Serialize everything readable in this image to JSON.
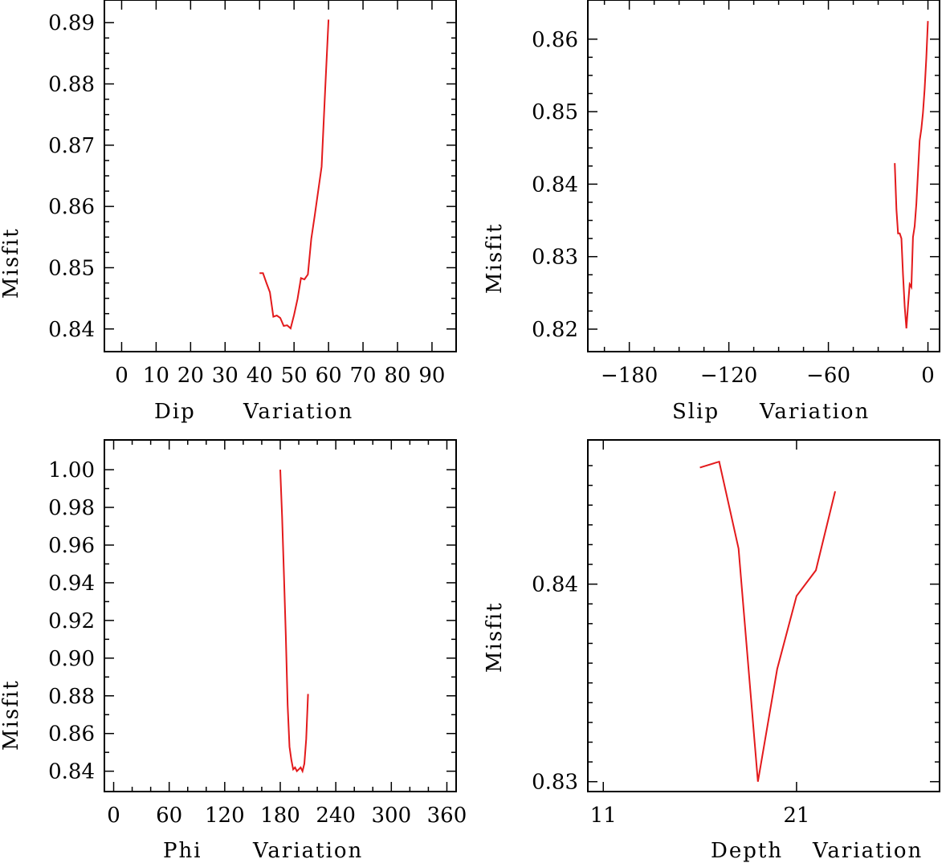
{
  "colors": {
    "series": "#e31a1c",
    "axes": "#000000"
  },
  "chart_data": [
    {
      "id": "dip",
      "type": "line",
      "title": "",
      "xlabel": "Dip",
      "xlabel2": "Variation",
      "ylabel": "Misfit",
      "xlim": [
        -5,
        97
      ],
      "ylim": [
        0.8363,
        0.8937
      ],
      "xticks": [
        0,
        10,
        20,
        30,
        40,
        50,
        60,
        70,
        80,
        90
      ],
      "xtick_labels": [
        "0",
        "10",
        "20",
        "30",
        "40",
        "50",
        "60",
        "70",
        "80",
        "90"
      ],
      "xminor": [],
      "yticks": [
        0.84,
        0.85,
        0.86,
        0.87,
        0.88,
        0.89
      ],
      "ytick_labels": [
        "0.84",
        "0.85",
        "0.86",
        "0.87",
        "0.88",
        "0.89"
      ],
      "yminor": [
        0.8425,
        0.845,
        0.8475,
        0.8525,
        0.855,
        0.8575,
        0.8625,
        0.865,
        0.8675,
        0.8725,
        0.875,
        0.8775,
        0.8825,
        0.885,
        0.8875
      ],
      "series": [
        {
          "name": "misfit",
          "x": [
            40,
            41,
            42,
            43,
            44,
            45,
            46,
            47,
            48,
            49,
            50,
            51,
            52,
            53,
            54,
            55,
            56,
            57,
            58,
            59,
            60
          ],
          "y": [
            0.8491,
            0.8491,
            0.8475,
            0.846,
            0.842,
            0.8422,
            0.8418,
            0.8405,
            0.8406,
            0.8401,
            0.8423,
            0.8449,
            0.8483,
            0.8481,
            0.8489,
            0.8547,
            0.8585,
            0.8625,
            0.8665,
            0.8787,
            0.8905
          ]
        }
      ]
    },
    {
      "id": "slip",
      "type": "line",
      "title": "",
      "xlabel": "Slip",
      "xlabel2": "Variation",
      "ylabel": "Misfit",
      "xlim": [
        -205,
        7
      ],
      "ylim": [
        0.8169,
        0.8654
      ],
      "xticks": [
        -180,
        -120,
        -60,
        0
      ],
      "xtick_labels": [
        "−180",
        "−120",
        "−60",
        "0"
      ],
      "xminor": [
        -195,
        -165,
        -150,
        -135,
        -105,
        -90,
        -75,
        -45,
        -30,
        -15
      ],
      "yticks": [
        0.82,
        0.83,
        0.84,
        0.85,
        0.86
      ],
      "ytick_labels": [
        "0.82",
        "0.83",
        "0.84",
        "0.85",
        "0.86"
      ],
      "yminor": [
        0.8225,
        0.825,
        0.8275,
        0.8325,
        0.835,
        0.8375,
        0.8425,
        0.845,
        0.8475,
        0.8525,
        0.855,
        0.8575
      ],
      "series": [
        {
          "name": "misfit",
          "x": [
            -20,
            -19,
            -18,
            -17,
            -16,
            -15,
            -14,
            -13,
            -12,
            -11,
            -10,
            -9,
            -8,
            -7,
            -6,
            -5,
            -4,
            -3,
            -2,
            -1,
            0
          ],
          "y": [
            0.8429,
            0.8365,
            0.8332,
            0.8332,
            0.8325,
            0.8275,
            0.8231,
            0.8201,
            0.8232,
            0.8262,
            0.8258,
            0.8327,
            0.8342,
            0.8373,
            0.8415,
            0.846,
            0.8476,
            0.8498,
            0.8531,
            0.8574,
            0.8625
          ]
        }
      ]
    },
    {
      "id": "phi",
      "type": "line",
      "title": "",
      "xlabel": "Phi",
      "xlabel2": "Variation",
      "ylabel": "Misfit",
      "xlim": [
        -10,
        370
      ],
      "ylim": [
        0.8292,
        1.0158
      ],
      "xticks": [
        0,
        60,
        120,
        180,
        240,
        300,
        360
      ],
      "xtick_labels": [
        "0",
        "60",
        "120",
        "180",
        "240",
        "300",
        "360"
      ],
      "xminor": [
        20,
        40,
        80,
        100,
        140,
        160,
        200,
        220,
        260,
        280,
        320,
        340
      ],
      "yticks": [
        0.84,
        0.86,
        0.88,
        0.9,
        0.92,
        0.94,
        0.96,
        0.98,
        1.0
      ],
      "ytick_labels": [
        "0.84",
        "0.86",
        "0.88",
        "0.90",
        "0.92",
        "0.94",
        "0.96",
        "0.98",
        "1.00"
      ],
      "yminor": [
        0.85,
        0.87,
        0.89,
        0.91,
        0.93,
        0.95,
        0.97,
        0.99
      ],
      "series": [
        {
          "name": "misfit",
          "x": [
            180,
            182,
            184,
            186,
            188,
            190,
            192,
            194,
            196,
            198,
            200,
            202,
            204,
            206,
            208,
            210
          ],
          "y": [
            1.0,
            0.975,
            0.944,
            0.912,
            0.875,
            0.853,
            0.846,
            0.841,
            0.842,
            0.84,
            0.841,
            0.842,
            0.84,
            0.844,
            0.857,
            0.881
          ]
        }
      ]
    },
    {
      "id": "depth",
      "type": "line",
      "title": "",
      "xlabel": "Depth",
      "xlabel2": "Variation",
      "ylabel": "Misfit",
      "xlim": [
        10.2,
        28.4
      ],
      "ylim": [
        0.8295,
        0.8473
      ],
      "xticks": [
        11,
        21
      ],
      "xtick_labels": [
        "11",
        "21"
      ],
      "xminor": [],
      "yticks": [
        0.83,
        0.84
      ],
      "ytick_labels": [
        "0.83",
        "0.84"
      ],
      "yminor": [
        0.831,
        0.832,
        0.833,
        0.834,
        0.835,
        0.836,
        0.837,
        0.838,
        0.839,
        0.841,
        0.842,
        0.843,
        0.844,
        0.845,
        0.846
      ],
      "series": [
        {
          "name": "misfit",
          "x": [
            16,
            17,
            18,
            19,
            20,
            21,
            22,
            23
          ],
          "y": [
            0.8459,
            0.8462,
            0.8418,
            0.83,
            0.8357,
            0.8394,
            0.8407,
            0.8447
          ]
        }
      ]
    }
  ]
}
